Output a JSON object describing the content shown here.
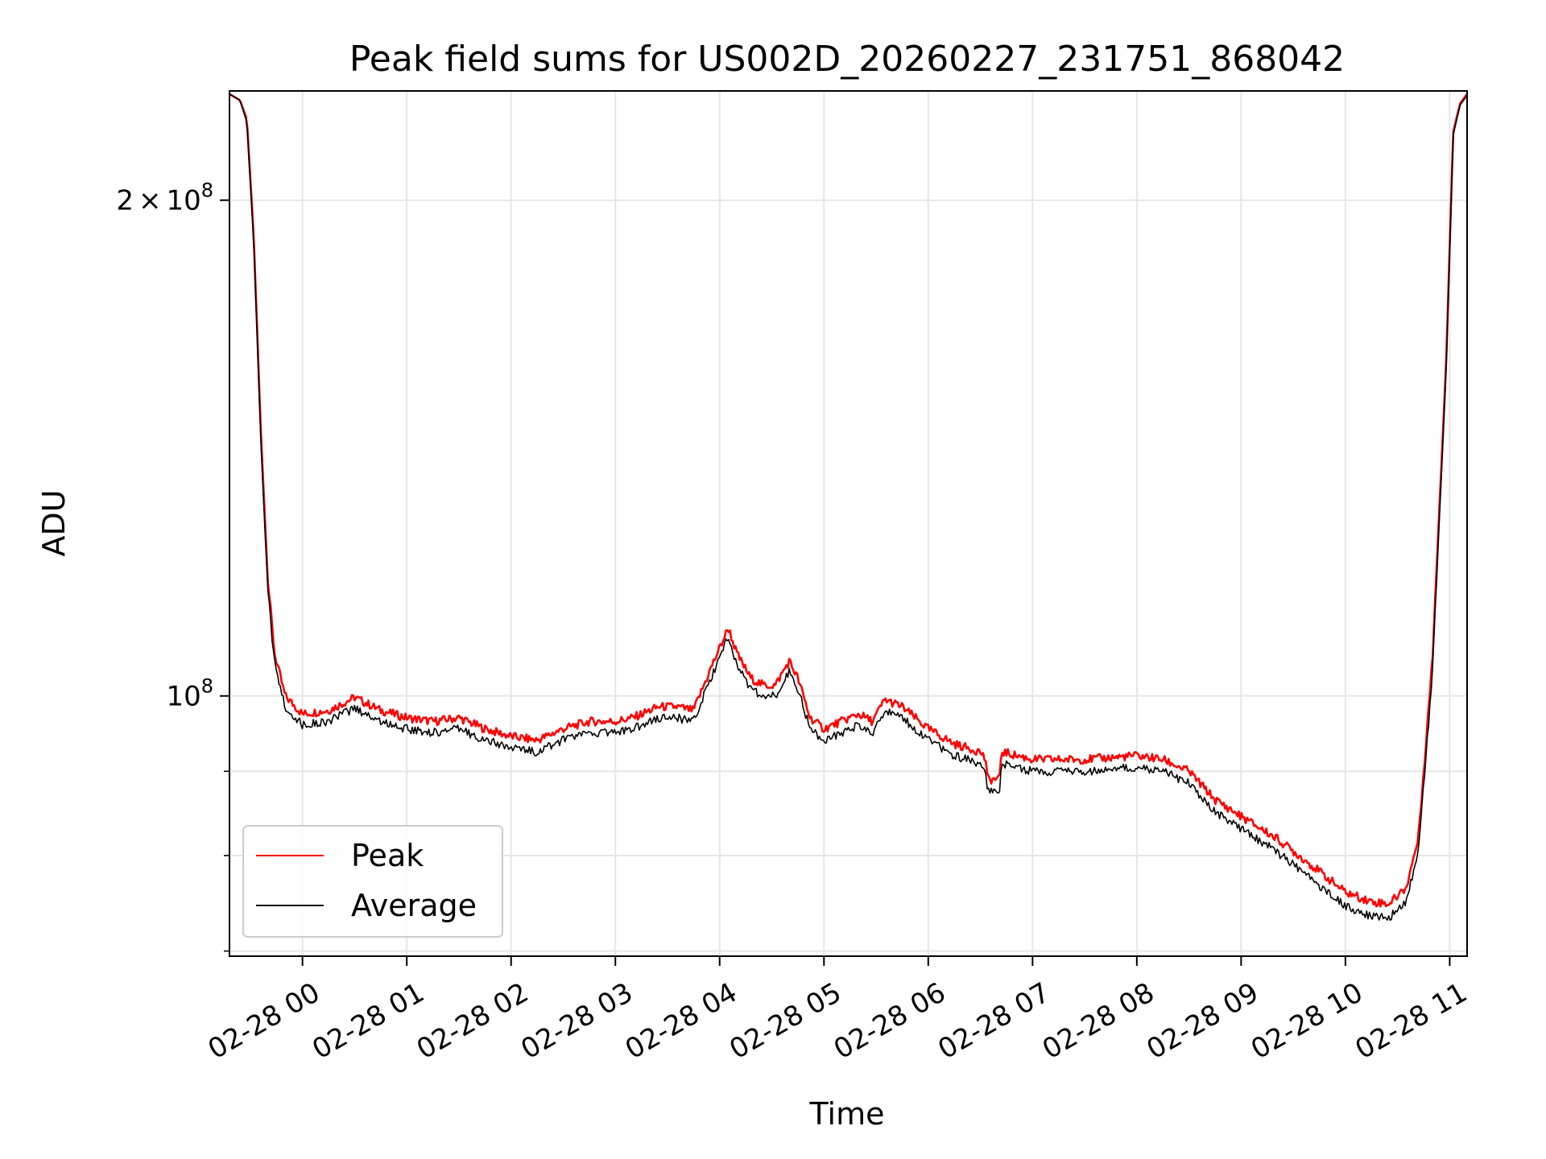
{
  "chart_data": {
    "type": "line",
    "title": "Peak field sums for US002D_20260227_231751_868042",
    "xlabel": "Time",
    "ylabel": "ADU",
    "y_scale": "log",
    "grid": true,
    "legend_position": "lower-left",
    "xlim": [
      "2026-02-27 23:18",
      "2026-02-28 11:10"
    ],
    "ylim": [
      69500000,
      233000000
    ],
    "x_ticks": [
      {
        "value": "2026-02-28 00:00",
        "label": "02-28 00"
      },
      {
        "value": "2026-02-28 01:00",
        "label": "02-28 01"
      },
      {
        "value": "2026-02-28 02:00",
        "label": "02-28 02"
      },
      {
        "value": "2026-02-28 03:00",
        "label": "02-28 03"
      },
      {
        "value": "2026-02-28 04:00",
        "label": "02-28 04"
      },
      {
        "value": "2026-02-28 05:00",
        "label": "02-28 05"
      },
      {
        "value": "2026-02-28 06:00",
        "label": "02-28 06"
      },
      {
        "value": "2026-02-28 07:00",
        "label": "02-28 07"
      },
      {
        "value": "2026-02-28 08:00",
        "label": "02-28 08"
      },
      {
        "value": "2026-02-28 09:00",
        "label": "02-28 09"
      },
      {
        "value": "2026-02-28 10:00",
        "label": "02-28 10"
      },
      {
        "value": "2026-02-28 11:00",
        "label": "02-28 11"
      }
    ],
    "y_major_ticks": [
      {
        "value": 100000000,
        "base": "10",
        "exp": "8",
        "mantissa": ""
      },
      {
        "value": 200000000,
        "base": "10",
        "exp": "8",
        "mantissa": "2"
      }
    ],
    "y_minor_ticks": [
      70000000,
      80000000,
      90000000
    ],
    "series": [
      {
        "name": "Peak",
        "color": "#ff0000",
        "x": [
          "2026-02-27 23:18",
          "2026-02-27 23:24",
          "2026-02-27 23:28",
          "2026-02-27 23:32",
          "2026-02-27 23:36",
          "2026-02-27 23:40",
          "2026-02-27 23:44",
          "2026-02-27 23:50",
          "2026-02-28 00:00",
          "2026-02-28 00:15",
          "2026-02-28 00:30",
          "2026-02-28 00:45",
          "2026-02-28 01:00",
          "2026-02-28 01:15",
          "2026-02-28 01:30",
          "2026-02-28 01:45",
          "2026-02-28 02:00",
          "2026-02-28 02:15",
          "2026-02-28 02:30",
          "2026-02-28 02:45",
          "2026-02-28 03:00",
          "2026-02-28 03:10",
          "2026-02-28 03:25",
          "2026-02-28 03:35",
          "2026-02-28 03:45",
          "2026-02-28 03:55",
          "2026-02-28 04:05",
          "2026-02-28 04:10",
          "2026-02-28 04:18",
          "2026-02-28 04:25",
          "2026-02-28 04:32",
          "2026-02-28 04:40",
          "2026-02-28 04:45",
          "2026-02-28 04:52",
          "2026-02-28 05:00",
          "2026-02-28 05:10",
          "2026-02-28 05:20",
          "2026-02-28 05:28",
          "2026-02-28 05:35",
          "2026-02-28 05:45",
          "2026-02-28 06:00",
          "2026-02-28 06:15",
          "2026-02-28 06:30",
          "2026-02-28 06:33",
          "2026-02-28 06:34",
          "2026-02-28 06:41",
          "2026-02-28 06:42",
          "2026-02-28 07:00",
          "2026-02-28 07:30",
          "2026-02-28 08:00",
          "2026-02-28 08:15",
          "2026-02-28 08:30",
          "2026-02-28 08:45",
          "2026-02-28 09:00",
          "2026-02-28 09:20",
          "2026-02-28 09:40",
          "2026-02-28 10:00",
          "2026-02-28 10:15",
          "2026-02-28 10:25",
          "2026-02-28 10:35",
          "2026-02-28 10:42",
          "2026-02-28 10:50",
          "2026-02-28 10:58",
          "2026-02-28 11:02",
          "2026-02-28 11:06",
          "2026-02-28 11:10"
        ],
        "values": [
          232000000,
          230000000,
          224000000,
          190000000,
          145000000,
          118000000,
          106000000,
          100000000,
          97500000,
          98000000,
          99800000,
          98000000,
          97000000,
          96500000,
          97000000,
          95500000,
          94500000,
          94000000,
          95500000,
          96500000,
          96500000,
          97000000,
          98500000,
          98500000,
          98000000,
          104000000,
          110000000,
          106000000,
          102500000,
          101500000,
          101500000,
          105000000,
          102500000,
          97000000,
          95500000,
          96500000,
          97500000,
          96500000,
          99500000,
          98500000,
          95500000,
          93500000,
          92500000,
          91500000,
          89000000,
          89000000,
          92500000,
          91500000,
          91500000,
          92000000,
          91500000,
          90000000,
          86500000,
          84500000,
          82000000,
          79000000,
          76000000,
          75000000,
          74800000,
          76500000,
          82000000,
          105000000,
          160000000,
          220000000,
          229000000,
          232000000
        ]
      },
      {
        "name": "Average",
        "color": "#000000",
        "x": [
          "2026-02-27 23:18",
          "2026-02-27 23:24",
          "2026-02-27 23:28",
          "2026-02-27 23:32",
          "2026-02-27 23:36",
          "2026-02-27 23:40",
          "2026-02-27 23:44",
          "2026-02-27 23:50",
          "2026-02-28 00:00",
          "2026-02-28 00:15",
          "2026-02-28 00:30",
          "2026-02-28 00:45",
          "2026-02-28 01:00",
          "2026-02-28 01:15",
          "2026-02-28 01:30",
          "2026-02-28 01:45",
          "2026-02-28 02:00",
          "2026-02-28 02:15",
          "2026-02-28 02:30",
          "2026-02-28 02:45",
          "2026-02-28 03:00",
          "2026-02-28 03:10",
          "2026-02-28 03:25",
          "2026-02-28 03:35",
          "2026-02-28 03:45",
          "2026-02-28 03:55",
          "2026-02-28 04:05",
          "2026-02-28 04:10",
          "2026-02-28 04:18",
          "2026-02-28 04:25",
          "2026-02-28 04:32",
          "2026-02-28 04:40",
          "2026-02-28 04:45",
          "2026-02-28 04:52",
          "2026-02-28 05:00",
          "2026-02-28 05:10",
          "2026-02-28 05:20",
          "2026-02-28 05:28",
          "2026-02-28 05:35",
          "2026-02-28 05:45",
          "2026-02-28 06:00",
          "2026-02-28 06:15",
          "2026-02-28 06:30",
          "2026-02-28 06:33",
          "2026-02-28 06:34",
          "2026-02-28 06:41",
          "2026-02-28 06:42",
          "2026-02-28 07:00",
          "2026-02-28 07:30",
          "2026-02-28 08:00",
          "2026-02-28 08:15",
          "2026-02-28 08:30",
          "2026-02-28 08:45",
          "2026-02-28 09:00",
          "2026-02-28 09:20",
          "2026-02-28 09:40",
          "2026-02-28 10:00",
          "2026-02-28 10:15",
          "2026-02-28 10:25",
          "2026-02-28 10:35",
          "2026-02-28 10:42",
          "2026-02-28 10:50",
          "2026-02-28 10:58",
          "2026-02-28 11:02",
          "2026-02-28 11:06",
          "2026-02-28 11:10"
        ],
        "values": [
          232000000,
          230000000,
          223000000,
          188000000,
          143000000,
          116000000,
          104500000,
          98500000,
          96000000,
          96500000,
          98300000,
          96500000,
          95500000,
          95000000,
          95500000,
          94000000,
          93000000,
          92500000,
          94000000,
          95000000,
          95000000,
          95500000,
          97000000,
          97000000,
          96500000,
          102500000,
          108500000,
          104500000,
          101000000,
          100000000,
          100000000,
          103500000,
          101000000,
          95500000,
          94000000,
          95000000,
          96000000,
          95000000,
          98000000,
          97000000,
          94000000,
          92000000,
          91000000,
          90000000,
          87500000,
          87500000,
          91000000,
          90000000,
          90000000,
          90500000,
          90000000,
          88500000,
          85000000,
          83000000,
          80500000,
          77500000,
          74500000,
          73500000,
          73300000,
          75000000,
          80500000,
          103000000,
          158000000,
          219000000,
          228500000,
          231500000
        ]
      }
    ],
    "legend": [
      {
        "name": "Peak",
        "color": "#ff0000"
      },
      {
        "name": "Average",
        "color": "#000000"
      }
    ]
  }
}
